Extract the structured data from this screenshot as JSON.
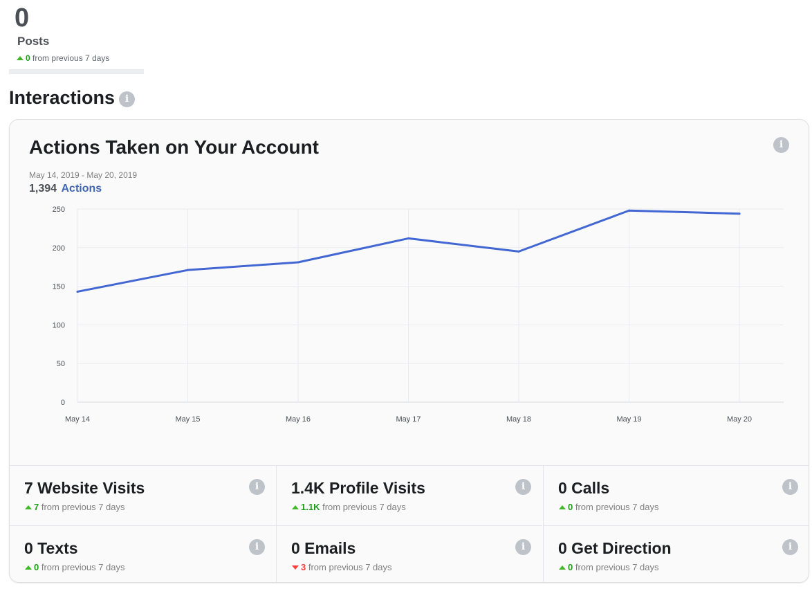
{
  "posts": {
    "count": "0",
    "label": "Posts",
    "delta_value": "0",
    "delta_text": "from previous 7 days"
  },
  "section": {
    "title": "Interactions",
    "info_icon": "i"
  },
  "card": {
    "title": "Actions Taken on Your Account",
    "info_icon": "i",
    "date_range": "May 14, 2019 - May 20, 2019",
    "total_value": "1,394",
    "total_unit": "Actions"
  },
  "chart_data": {
    "type": "line",
    "title": "Actions Taken on Your Account",
    "categories": [
      "May 14",
      "May 15",
      "May 16",
      "May 17",
      "May 18",
      "May 19",
      "May 20"
    ],
    "series": [
      {
        "name": "Actions",
        "values": [
          143,
          171,
          181,
          212,
          195,
          248,
          244
        ]
      }
    ],
    "y_ticks": [
      0,
      50,
      100,
      150,
      200,
      250
    ],
    "ylim": [
      0,
      250
    ],
    "grid": true,
    "line_color": "#4267d2"
  },
  "metrics": [
    {
      "title": "7 Website Visits",
      "delta_value": "7",
      "direction": "up",
      "delta_text": "from previous 7 days"
    },
    {
      "title": "1.4K Profile Visits",
      "delta_value": "1.1K",
      "direction": "up",
      "delta_text": "from previous 7 days"
    },
    {
      "title": "0 Calls",
      "delta_value": "0",
      "direction": "up",
      "delta_text": "from previous 7 days"
    },
    {
      "title": "0 Texts",
      "delta_value": "0",
      "direction": "up",
      "delta_text": "from previous 7 days"
    },
    {
      "title": "0 Emails",
      "delta_value": "3",
      "direction": "down",
      "delta_text": "from previous 7 days"
    },
    {
      "title": "0 Get Direction",
      "delta_value": "0",
      "direction": "up",
      "delta_text": "from previous 7 days"
    }
  ]
}
